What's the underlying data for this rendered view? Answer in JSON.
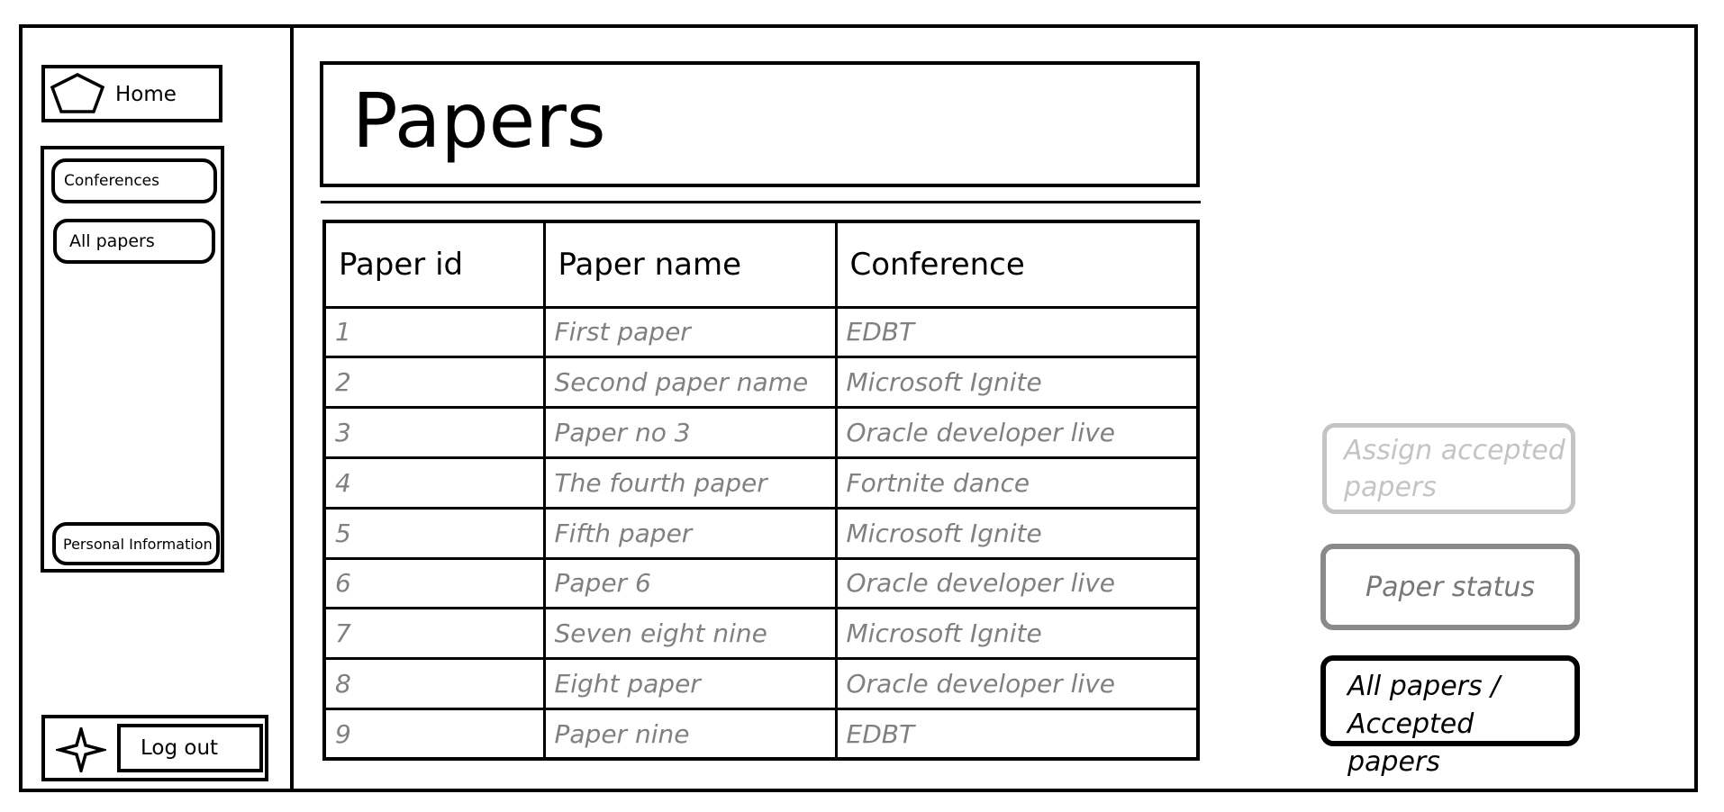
{
  "sidebar": {
    "home_label": "Home",
    "items": [
      {
        "label": "Conferences"
      },
      {
        "label": "All papers"
      },
      {
        "label": "Personal Information"
      }
    ],
    "logout_label": "Log out",
    "home_icon": "pentagon-icon",
    "logout_icon": "star-icon"
  },
  "main": {
    "title": "Papers",
    "table": {
      "columns": [
        "Paper id",
        "Paper name",
        "Conference"
      ],
      "rows": [
        [
          "1",
          "First paper",
          "EDBT"
        ],
        [
          "2",
          "Second paper name",
          "Microsoft Ignite"
        ],
        [
          "3",
          "Paper no 3",
          "Oracle developer live"
        ],
        [
          "4",
          "The fourth paper",
          "Fortnite dance"
        ],
        [
          "5",
          "Fifth paper",
          "Microsoft Ignite"
        ],
        [
          "6",
          "Paper 6",
          "Oracle developer live"
        ],
        [
          "7",
          "Seven eight nine",
          "Microsoft Ignite"
        ],
        [
          "8",
          "Eight paper",
          "Oracle developer live"
        ],
        [
          "9",
          "Paper nine",
          "EDBT"
        ]
      ]
    }
  },
  "actions": {
    "assign_line1": "Assign accepted",
    "assign_line2": "papers",
    "status_label": "Paper status",
    "toggle_line1": "All papers /",
    "toggle_line2": "Accepted papers"
  },
  "colors": {
    "disabled": "#c4c4c4",
    "secondary": "#808080",
    "primary": "#000000"
  }
}
